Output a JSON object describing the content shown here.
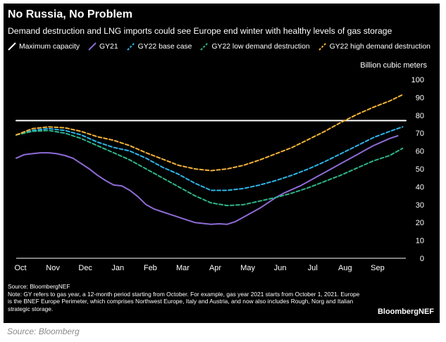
{
  "title": "No Russia, No Problem",
  "subtitle": "Demand destruction and LNG imports could see Europe end winter with healthy levels of gas storage",
  "unit_label": "Billion cubic meters",
  "source_line": "Source: BloombergNEF",
  "note": "Note: GY refers to gas year, a 12-month period starting from October. For example, gas year 2021 starts from October 1, 2021. Europe is the BNEF Europe Perimeter, which comprises Northwest Europe, Italy and Austria, and now also includes Rough, Norg and Italian strategic storage.",
  "brand": "BloombergNEF",
  "caption": "Source: Bloomberg",
  "colors": {
    "background": "#000000",
    "max_capacity": "#ffffff",
    "gy21": "#8e6bd6",
    "gy22_base": "#2fb4e8",
    "gy22_low": "#2fb58a",
    "gy22_high": "#f2b23a"
  },
  "chart_data": {
    "type": "line",
    "title": "No Russia, No Problem",
    "ylabel": "Billion cubic meters",
    "xlabel": "",
    "ylim": [
      0,
      100
    ],
    "yticks": [
      0,
      10,
      20,
      30,
      40,
      50,
      60,
      70,
      80,
      90,
      100
    ],
    "x_tick_labels": [
      "Oct",
      "Nov",
      "Dec",
      "Jan",
      "Feb",
      "Mar",
      "Apr",
      "May",
      "Jun",
      "Jul",
      "Aug",
      "Sep"
    ],
    "x_domain": [
      0,
      12
    ],
    "legend_position": "top",
    "grid": false,
    "series": [
      {
        "name": "Maximum capacity",
        "style": "solid",
        "color_key": "max_capacity",
        "x": [
          0,
          12
        ],
        "values": [
          77,
          77
        ]
      },
      {
        "name": "GY21",
        "style": "solid",
        "color_key": "gy21",
        "x": [
          0,
          0.25,
          0.5,
          0.75,
          1,
          1.25,
          1.5,
          1.75,
          2,
          2.25,
          2.5,
          2.75,
          3,
          3.25,
          3.5,
          3.75,
          4,
          4.25,
          4.5,
          4.75,
          5,
          5.25,
          5.5,
          5.75,
          6,
          6.25,
          6.5,
          6.75,
          7,
          7.25,
          7.5,
          7.75,
          8,
          8.25,
          8.5,
          8.75,
          9,
          9.25,
          9.5,
          9.75,
          10,
          10.25,
          10.5,
          10.75,
          11,
          11.25,
          11.5,
          11.75
        ],
        "values": [
          56,
          58,
          58.5,
          59,
          59,
          58.5,
          57.5,
          56,
          53,
          50,
          46.5,
          43.5,
          41,
          40.5,
          38,
          34.5,
          30,
          27.5,
          26,
          24.5,
          23,
          21.5,
          20,
          19.5,
          19,
          19.3,
          19,
          20.5,
          23,
          25.5,
          28,
          31,
          34,
          36.5,
          38.5,
          40.5,
          43,
          45.5,
          48,
          50.5,
          53,
          55.5,
          58,
          60.5,
          63,
          65,
          67,
          68.5
        ]
      },
      {
        "name": "GY22 base case",
        "style": "dashed",
        "color_key": "gy22_base",
        "x": [
          0,
          0.5,
          1,
          1.5,
          2,
          2.5,
          3,
          3.5,
          4,
          4.5,
          5,
          5.5,
          6,
          6.5,
          7,
          7.5,
          8,
          8.5,
          9,
          9.5,
          10,
          10.5,
          11,
          11.5,
          11.9
        ],
        "values": [
          69,
          71.5,
          72.5,
          71.5,
          69,
          65,
          62,
          60,
          56,
          51,
          47,
          42,
          38,
          38,
          39,
          41,
          43.5,
          46.5,
          50,
          54,
          58.5,
          63,
          67.5,
          71,
          73.5
        ]
      },
      {
        "name": "GY22 low demand destruction",
        "style": "dashed",
        "color_key": "gy22_low",
        "x": [
          0,
          0.5,
          1,
          1.5,
          2,
          2.5,
          3,
          3.5,
          4,
          4.5,
          5,
          5.5,
          6,
          6.5,
          7,
          7.5,
          8,
          8.5,
          9,
          9.5,
          10,
          10.5,
          11,
          11.5,
          11.9
        ],
        "values": [
          69,
          71,
          71.5,
          70,
          67,
          63,
          59,
          55,
          50,
          45,
          40,
          35,
          31,
          29.5,
          30,
          32,
          34,
          36.5,
          39.5,
          43,
          46.5,
          50.5,
          54.5,
          57.5,
          61.5
        ]
      },
      {
        "name": "GY22 high demand destruction",
        "style": "dashed",
        "color_key": "gy22_high",
        "x": [
          0,
          0.5,
          1,
          1.5,
          2,
          2.5,
          3,
          3.5,
          4,
          4.5,
          5,
          5.5,
          6,
          6.5,
          7,
          7.5,
          8,
          8.5,
          9,
          9.5,
          10,
          10.5,
          11,
          11.5,
          11.9
        ],
        "values": [
          69,
          72.5,
          73.5,
          73,
          71,
          68,
          66,
          63,
          59,
          55.5,
          52,
          50,
          49,
          50,
          52,
          55,
          58.5,
          62,
          66.5,
          71,
          76,
          80.5,
          84.5,
          88,
          91.5
        ]
      }
    ]
  }
}
